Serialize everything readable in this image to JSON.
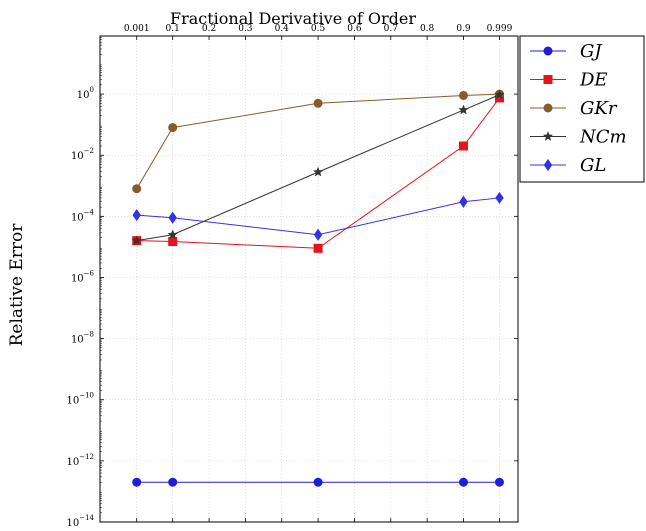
{
  "chart_data": {
    "type": "line",
    "title": "Fractional Derivative of Order",
    "ylabel": "Relative Error",
    "xlabel": "",
    "y_scale": "log",
    "xlim": [
      -0.1,
      1.05
    ],
    "ylim_exponent": [
      -14,
      1.9
    ],
    "grid": true,
    "legend_position": "right",
    "x_axis_position": "top",
    "x_ticks": [
      "0.001",
      "0.1",
      "0.2",
      "0.3",
      "0.4",
      "0.5",
      "0.6",
      "0.7",
      "0.8",
      "0.9",
      "0.999"
    ],
    "y_ticks": [
      "0",
      "-2",
      "-4",
      "-6",
      "-8",
      "-10",
      "-12",
      "-14"
    ],
    "x": [
      0.001,
      0.1,
      0.5,
      0.9,
      0.999
    ],
    "series": [
      {
        "name": "GJ",
        "color": "#1f1fd9",
        "marker": "circle",
        "values": [
          2e-13,
          2e-13,
          2e-13,
          2e-13,
          2e-13
        ]
      },
      {
        "name": "DE",
        "color": "#e8121a",
        "marker": "square",
        "values": [
          1.6e-05,
          1.5e-05,
          9e-06,
          0.02,
          0.75
        ]
      },
      {
        "name": "GKr",
        "color": "#8b5a2b",
        "marker": "circle",
        "values": [
          0.0008,
          0.08,
          0.5,
          0.9,
          1.0
        ]
      },
      {
        "name": "NCm",
        "color": "#333333",
        "marker": "star",
        "values": [
          1.6e-05,
          2.5e-05,
          0.0028,
          0.3,
          0.95
        ]
      },
      {
        "name": "GL",
        "color": "#3333e6",
        "marker": "diamond",
        "values": [
          0.00011,
          9e-05,
          2.5e-05,
          0.0003,
          0.0004
        ]
      }
    ]
  }
}
